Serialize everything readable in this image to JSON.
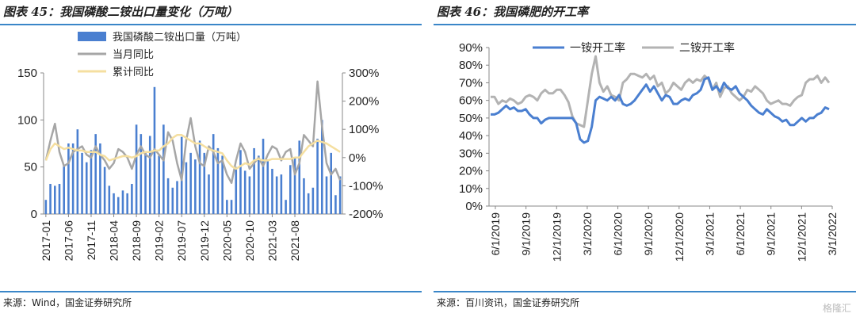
{
  "left": {
    "title": "图表 45：我国磷酸二铵出口量变化（万吨）",
    "source": "来源：Wind，国金证券研究所",
    "chart_data": {
      "type": "bar",
      "legend": [
        "我国磷酸二铵出口量（万吨）",
        "当月同比",
        "累计同比"
      ],
      "legend_position": "top",
      "x_tick_labels": [
        "2017-01",
        "2017-06",
        "2017-11",
        "2018-04",
        "2018-09",
        "2019-02",
        "2019-07",
        "2019-12",
        "2020-05",
        "2020-10",
        "2021-03",
        "2021-08"
      ],
      "y_left_ticks": [
        "0",
        "50",
        "100",
        "150"
      ],
      "y_right_ticks": [
        "-200%",
        "-100%",
        "0%",
        "100%",
        "200%",
        "300%"
      ],
      "ylim_left": [
        0,
        150
      ],
      "ylim_right": [
        -200,
        300
      ],
      "colors": {
        "bar": "#4a7fd0",
        "mom": "#a6a6a6",
        "cum": "#f5dfa0"
      },
      "series": [
        {
          "name": "我国磷酸二铵出口量（万吨）",
          "type": "bar",
          "axis": "left",
          "values": [
            15,
            32,
            30,
            32,
            52,
            75,
            75,
            90,
            65,
            55,
            68,
            85,
            75,
            50,
            30,
            22,
            18,
            25,
            22,
            32,
            95,
            85,
            65,
            83,
            135,
            62,
            95,
            38,
            28,
            35,
            82,
            55,
            65,
            58,
            78,
            65,
            42,
            85,
            70,
            62,
            15,
            15,
            50,
            68,
            46,
            40,
            70,
            62,
            80,
            58,
            48,
            40,
            42,
            15,
            52,
            60,
            78,
            38,
            22,
            28,
            80,
            100,
            40,
            65,
            20,
            40
          ]
        },
        {
          "name": "当月同比",
          "type": "line",
          "axis": "right",
          "values": [
            -10,
            60,
            120,
            20,
            -30,
            -20,
            20,
            30,
            40,
            10,
            0,
            40,
            10,
            -10,
            -40,
            -20,
            30,
            20,
            0,
            -40,
            10,
            40,
            10,
            0,
            30,
            10,
            -10,
            90,
            60,
            -20,
            -80,
            60,
            140,
            40,
            -20,
            -30,
            40,
            20,
            -20,
            -10,
            -60,
            -90,
            -10,
            50,
            20,
            -40,
            -20,
            0,
            -30,
            10,
            40,
            30,
            -10,
            20,
            30,
            -60,
            -20,
            80,
            60,
            40,
            270,
            110,
            -20,
            -60,
            -40,
            -80
          ]
        },
        {
          "name": "累计同比",
          "type": "line",
          "axis": "right",
          "values": [
            -10,
            30,
            50,
            40,
            30,
            35,
            30,
            25,
            25,
            20,
            20,
            20,
            10,
            5,
            -10,
            -5,
            0,
            5,
            5,
            0,
            5,
            15,
            20,
            20,
            25,
            25,
            40,
            50,
            70,
            80,
            80,
            70,
            60,
            50,
            50,
            40,
            30,
            25,
            20,
            15,
            -10,
            -30,
            -40,
            -30,
            -20,
            -25,
            -10,
            -5,
            -10,
            -10,
            -5,
            -5,
            -5,
            -5,
            -5,
            0,
            0,
            20,
            40,
            50,
            60,
            55,
            50,
            40,
            30,
            20
          ]
        }
      ]
    }
  },
  "right": {
    "title": "图表 46：我国磷肥的开工率",
    "source": "来源：百川资讯，国金证券研究所",
    "watermark": "格隆汇",
    "chart_data": {
      "type": "line",
      "legend": [
        "一铵开工率",
        "二铵开工率"
      ],
      "legend_position": "top",
      "x_tick_labels": [
        "6/1/2019",
        "9/1/2019",
        "12/1/2019",
        "3/1/2020",
        "6/1/2020",
        "9/1/2020",
        "12/1/2020",
        "3/1/2021",
        "6/1/2021",
        "9/1/2021",
        "12/1/2021",
        "3/1/2022"
      ],
      "y_ticks": [
        "0%",
        "10%",
        "20%",
        "30%",
        "40%",
        "50%",
        "60%",
        "70%",
        "80%",
        "90%"
      ],
      "ylim": [
        0,
        90
      ],
      "colors": {
        "mono": "#4a7fd0",
        "di": "#b3b3b3"
      },
      "series": [
        {
          "name": "一铵开工率",
          "values": [
            52,
            52,
            53,
            55,
            57,
            55,
            56,
            54,
            54,
            55,
            52,
            50,
            50,
            47,
            49,
            50,
            50,
            50,
            50,
            50,
            50,
            50,
            47,
            38,
            36,
            37,
            45,
            60,
            62,
            61,
            60,
            62,
            60,
            63,
            58,
            57,
            58,
            60,
            63,
            66,
            69,
            65,
            68,
            64,
            60,
            63,
            62,
            58,
            58,
            60,
            61,
            60,
            63,
            64,
            66,
            72,
            73,
            66,
            68,
            65,
            70,
            67,
            66,
            68,
            64,
            62,
            60,
            57,
            55,
            53,
            52,
            55,
            53,
            51,
            50,
            48,
            49,
            46,
            46,
            48,
            50,
            48,
            50,
            50,
            52,
            53,
            56,
            55
          ]
        },
        {
          "name": "二铵开工率",
          "values": [
            62,
            62,
            58,
            60,
            59,
            61,
            60,
            58,
            59,
            62,
            63,
            62,
            60,
            64,
            66,
            64,
            64,
            66,
            66,
            63,
            59,
            51,
            47,
            46,
            45,
            60,
            75,
            85,
            70,
            65,
            68,
            63,
            62,
            60,
            70,
            72,
            75,
            75,
            74,
            73,
            75,
            72,
            74,
            68,
            70,
            64,
            66,
            70,
            68,
            66,
            70,
            72,
            70,
            72,
            71,
            74,
            72,
            66,
            70,
            62,
            67,
            68,
            64,
            62,
            60,
            62,
            66,
            65,
            68,
            66,
            64,
            60,
            58,
            59,
            60,
            58,
            58,
            57,
            60,
            62,
            63,
            70,
            72,
            72,
            74,
            70,
            73,
            70
          ]
        }
      ]
    }
  }
}
